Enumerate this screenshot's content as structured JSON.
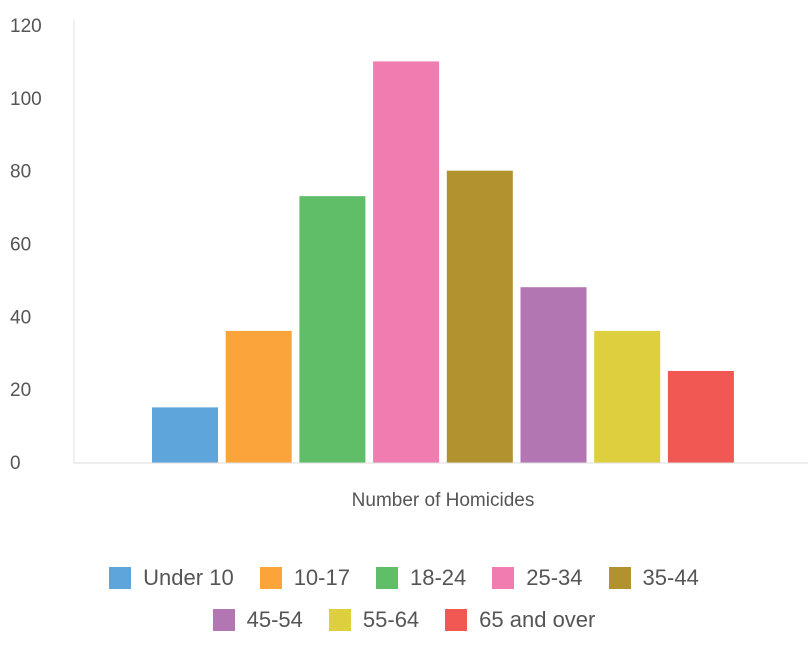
{
  "chart_data": {
    "type": "bar",
    "title": "",
    "xlabel": "Number of Homicides",
    "ylabel": "",
    "ylim": [
      0,
      120
    ],
    "yticks": [
      0,
      20,
      40,
      60,
      80,
      100,
      120
    ],
    "grid": false,
    "legend_position": "bottom",
    "series": [
      {
        "name": "Under 10",
        "values": [
          15
        ],
        "color": "#5DA5DA"
      },
      {
        "name": "10-17",
        "values": [
          36
        ],
        "color": "#FAA43A"
      },
      {
        "name": "18-24",
        "values": [
          73
        ],
        "color": "#60BD68"
      },
      {
        "name": "25-34",
        "values": [
          110
        ],
        "color": "#F17CB0"
      },
      {
        "name": "35-44",
        "values": [
          80
        ],
        "color": "#B2912F"
      },
      {
        "name": "45-54",
        "values": [
          48
        ],
        "color": "#B276B2"
      },
      {
        "name": "55-64",
        "values": [
          36
        ],
        "color": "#DECF3F"
      },
      {
        "name": "65 and over",
        "values": [
          25
        ],
        "color": "#F15854"
      }
    ]
  }
}
